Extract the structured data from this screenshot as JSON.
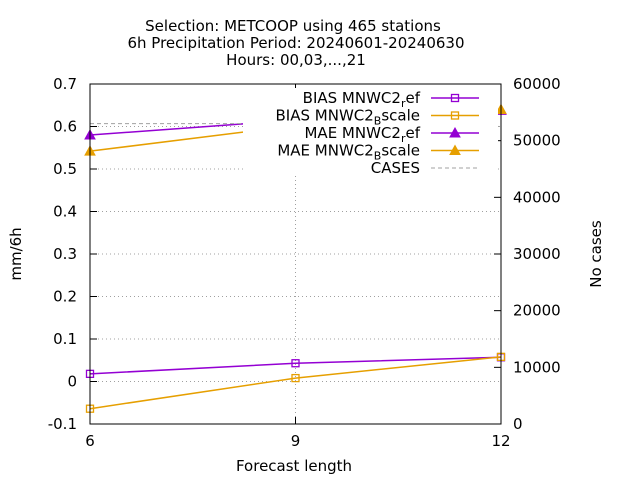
{
  "chart_data": {
    "type": "line",
    "title_lines": [
      "Selection: METCOOP using   465 stations",
      "6h Precipitation   Period: 20240601-20240630",
      "Hours: 00,03,...,21"
    ],
    "xlabel": "Forecast length",
    "ylabel": "mm/6h",
    "y2label": "No cases",
    "x": [
      6,
      9,
      12
    ],
    "xlim": [
      6,
      12
    ],
    "ylim": [
      -0.1,
      0.7
    ],
    "y2lim": [
      0,
      60000
    ],
    "x_ticks": [
      "6",
      "9",
      "12"
    ],
    "y_ticks": [
      "-0.1",
      "0",
      "0.1",
      "0.2",
      "0.3",
      "0.4",
      "0.5",
      "0.6",
      "0.7"
    ],
    "y2_ticks": [
      "0",
      "10000",
      "20000",
      "30000",
      "40000",
      "50000",
      "60000"
    ],
    "grid": true,
    "legend_position": "top-right",
    "series": [
      {
        "name": "BIAS MNWC2_ref",
        "legend_main": "BIAS MNWC2",
        "legend_sub": "r",
        "legend_tail": "ef",
        "values": [
          0.018,
          0.043,
          0.057
        ],
        "color": "#9400d3",
        "marker": "square",
        "axis": "y",
        "dash": false
      },
      {
        "name": "BIAS MNWC2_Bscale",
        "legend_main": "BIAS MNWC2",
        "legend_sub": "B",
        "legend_tail": "scale",
        "values": [
          -0.064,
          0.008,
          0.058
        ],
        "color": "#e69f00",
        "marker": "square",
        "axis": "y",
        "dash": false
      },
      {
        "name": "MAE MNWC2_ref",
        "legend_main": "MAE MNWC2",
        "legend_sub": "r",
        "legend_tail": "ef",
        "values": [
          0.58,
          0.615,
          0.638
        ],
        "color": "#9400d3",
        "marker": "triangle",
        "axis": "y",
        "dash": false
      },
      {
        "name": "MAE MNWC2_Bscale",
        "legend_main": "MAE MNWC2",
        "legend_sub": "B",
        "legend_tail": "scale",
        "values": [
          0.542,
          0.602,
          0.64
        ],
        "color": "#e69f00",
        "marker": "triangle",
        "axis": "y",
        "dash": false
      },
      {
        "name": "CASES",
        "legend_main": "CASES",
        "legend_sub": "",
        "legend_tail": "",
        "values": [
          53000,
          53000,
          52500
        ],
        "color": "#a0a0a0",
        "marker": "none",
        "axis": "y2",
        "dash": true
      }
    ]
  }
}
